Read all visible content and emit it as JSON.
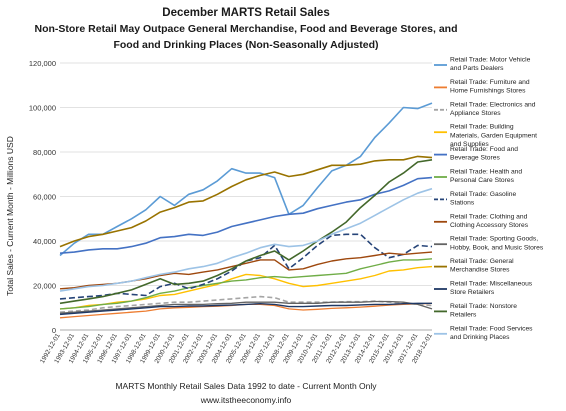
{
  "chart_data": {
    "type": "line",
    "title": "December MARTS Retail Sales",
    "subtitle_lines": [
      "Non-Store Retail May Outpace General Merchandise,  Food and Beverage Stores, and",
      "Food and Drinking Places (Non-Seasonally Adjusted)"
    ],
    "ylabel": "Total Sales - Current Month - Millions USD",
    "xlabel": "MARTS Monthly Retail Sales Data 1992 to date - Current Month Only",
    "source": "www.itstheeconomy.info",
    "ylim": [
      0,
      120000
    ],
    "y_ticks": [
      0,
      20000,
      40000,
      60000,
      80000,
      100000,
      120000
    ],
    "y_tick_labels": [
      "0",
      "20,000",
      "40,000",
      "60,000",
      "80,000",
      "100,000",
      "120,000"
    ],
    "grid": true,
    "legend": "right",
    "categories": [
      "1992-12-01",
      "1993-12-01",
      "1994-12-01",
      "1995-12-01",
      "1996-12-01",
      "1997-12-01",
      "1998-12-01",
      "1999-12-01",
      "2000-12-01",
      "2001-12-01",
      "2002-12-01",
      "2003-12-01",
      "2004-12-01",
      "2005-12-01",
      "2006-12-01",
      "2007-12-01",
      "2008-12-01",
      "2009-12-01",
      "2010-12-01",
      "2011-12-01",
      "2012-12-01",
      "2013-12-01",
      "2014-12-01",
      "2015-12-01",
      "2016-12-01",
      "2017-12-01",
      "2018-12-01"
    ],
    "series": [
      {
        "name": "Retail Trade: Motor Vehicle and Parts Dealers",
        "color": "#5b9bd5",
        "dash": "",
        "width": 1.6,
        "values": [
          33500,
          39000,
          43000,
          43000,
          46500,
          50000,
          54000,
          60000,
          56000,
          61000,
          63000,
          67000,
          72500,
          70500,
          70500,
          68500,
          52000,
          56000,
          64000,
          71500,
          74000,
          78000,
          86500,
          93000,
          100000,
          99500,
          102000
        ]
      },
      {
        "name": "Retail Trade: Furniture and Home Furnishings Stores",
        "color": "#ed7d31",
        "dash": "",
        "width": 1.3,
        "values": [
          5500,
          6000,
          6500,
          7000,
          7500,
          8000,
          8500,
          9500,
          10000,
          10200,
          10500,
          10700,
          11000,
          11500,
          11500,
          11000,
          9500,
          9000,
          9300,
          9700,
          10000,
          10300,
          10700,
          11200,
          11500,
          11700,
          12000
        ]
      },
      {
        "name": "Retail Trade: Electronics and Appliance Stores",
        "color": "#a5a5a5",
        "dash": "5,3",
        "width": 1.6,
        "values": [
          8000,
          8500,
          9000,
          10000,
          10500,
          11000,
          11500,
          12000,
          12500,
          12500,
          13000,
          13500,
          14000,
          14500,
          15000,
          14500,
          12500,
          12500,
          12500,
          12500,
          12700,
          12700,
          13000,
          12500,
          12000,
          11500,
          11000
        ]
      },
      {
        "name": "Retail Trade: Building Materials, Garden Equipment and Supplies",
        "color": "#ffc000",
        "dash": "",
        "width": 1.4,
        "values": [
          9500,
          10000,
          11000,
          11500,
          12500,
          13000,
          14000,
          15500,
          16000,
          17500,
          19000,
          20500,
          23000,
          25000,
          24500,
          23000,
          21000,
          19500,
          20000,
          21000,
          22000,
          23000,
          24500,
          26500,
          27000,
          28000,
          28500
        ]
      },
      {
        "name": "Retail Trade: Food and Beverage Stores",
        "color": "#4472c4",
        "dash": "",
        "width": 1.6,
        "values": [
          34500,
          35000,
          36000,
          36500,
          36500,
          37500,
          39000,
          41500,
          42000,
          43000,
          42500,
          44000,
          46500,
          48000,
          49500,
          51000,
          52000,
          52500,
          54500,
          56000,
          57500,
          58500,
          61000,
          62500,
          65000,
          68000,
          68500
        ]
      },
      {
        "name": "Retail Trade: Health and Personal Care Stores",
        "color": "#70ad47",
        "dash": "",
        "width": 1.4,
        "values": [
          9500,
          10000,
          10500,
          11500,
          12000,
          13000,
          14500,
          16500,
          17500,
          19000,
          20000,
          21000,
          22000,
          22500,
          23500,
          24000,
          23500,
          24000,
          24500,
          25000,
          25500,
          27500,
          29000,
          30500,
          31500,
          31500,
          32000
        ]
      },
      {
        "name": "Retail Trade: Gasoline Stations",
        "color": "#264478",
        "dash": "6,3",
        "width": 1.6,
        "values": [
          14000,
          14500,
          15000,
          15500,
          16500,
          16000,
          15500,
          19500,
          21000,
          18500,
          20500,
          23000,
          26500,
          31000,
          32500,
          38000,
          27500,
          32500,
          38000,
          42500,
          43000,
          43000,
          37000,
          32500,
          34000,
          38000,
          37500
        ]
      },
      {
        "name": "Retail Trade: Clothing and Clothing Accessory Stores",
        "color": "#9e480e",
        "dash": "",
        "width": 1.4,
        "values": [
          18500,
          19000,
          20000,
          20500,
          21000,
          22000,
          23000,
          24500,
          25500,
          25000,
          26000,
          27000,
          28500,
          30000,
          31500,
          31500,
          27000,
          27500,
          29500,
          31000,
          32000,
          32500,
          33500,
          34500,
          34000,
          34500,
          35000
        ]
      },
      {
        "name": "Retail Trade: Sporting Goods, Hobby, Book, and Music Stores",
        "color": "#636363",
        "dash": "",
        "width": 1.3,
        "values": [
          7500,
          8000,
          8500,
          9000,
          9500,
          10000,
          10500,
          11000,
          11500,
          11500,
          11500,
          11800,
          12000,
          12500,
          12500,
          12500,
          12000,
          12000,
          12000,
          12500,
          12500,
          12500,
          12800,
          12800,
          12500,
          11500,
          9500
        ]
      },
      {
        "name": "Retail Trade: General Merchandise Stores",
        "color": "#997300",
        "dash": "",
        "width": 1.6,
        "values": [
          37500,
          40000,
          42000,
          43000,
          44500,
          46000,
          49000,
          53000,
          55000,
          57500,
          58000,
          61000,
          64500,
          67500,
          69500,
          71000,
          69000,
          70000,
          72000,
          74000,
          74000,
          74500,
          76000,
          76500,
          76500,
          78000,
          77500
        ]
      },
      {
        "name": "Retail Trade: Miscellaneous Store Retailers",
        "color": "#1f3864",
        "dash": "",
        "width": 1.4,
        "values": [
          7000,
          7500,
          8000,
          8500,
          9000,
          9500,
          10000,
          10500,
          10500,
          10800,
          10800,
          11000,
          11200,
          11500,
          11800,
          11500,
          10500,
          10500,
          10800,
          11000,
          11000,
          11300,
          11500,
          11500,
          11800,
          12000,
          12000
        ]
      },
      {
        "name": "Retail Trade: Nonstore Retailers",
        "color": "#43682b",
        "dash": "",
        "width": 1.6,
        "values": [
          12000,
          13000,
          14000,
          15000,
          16500,
          18000,
          20500,
          23000,
          20500,
          21000,
          22000,
          24500,
          27500,
          31000,
          33500,
          35500,
          31500,
          35500,
          40000,
          44000,
          48500,
          55000,
          60500,
          66500,
          70500,
          75500,
          76500
        ]
      },
      {
        "name": "Retail Trade: Food Services and Drinking Places",
        "color": "#9dc3e6",
        "dash": "",
        "width": 1.6,
        "values": [
          17500,
          18500,
          19500,
          20000,
          21000,
          22000,
          23500,
          25000,
          26000,
          27500,
          28500,
          30000,
          32500,
          34500,
          37000,
          38500,
          37500,
          38000,
          40000,
          43000,
          45500,
          48000,
          51500,
          55000,
          58500,
          61500,
          63500
        ]
      }
    ]
  }
}
